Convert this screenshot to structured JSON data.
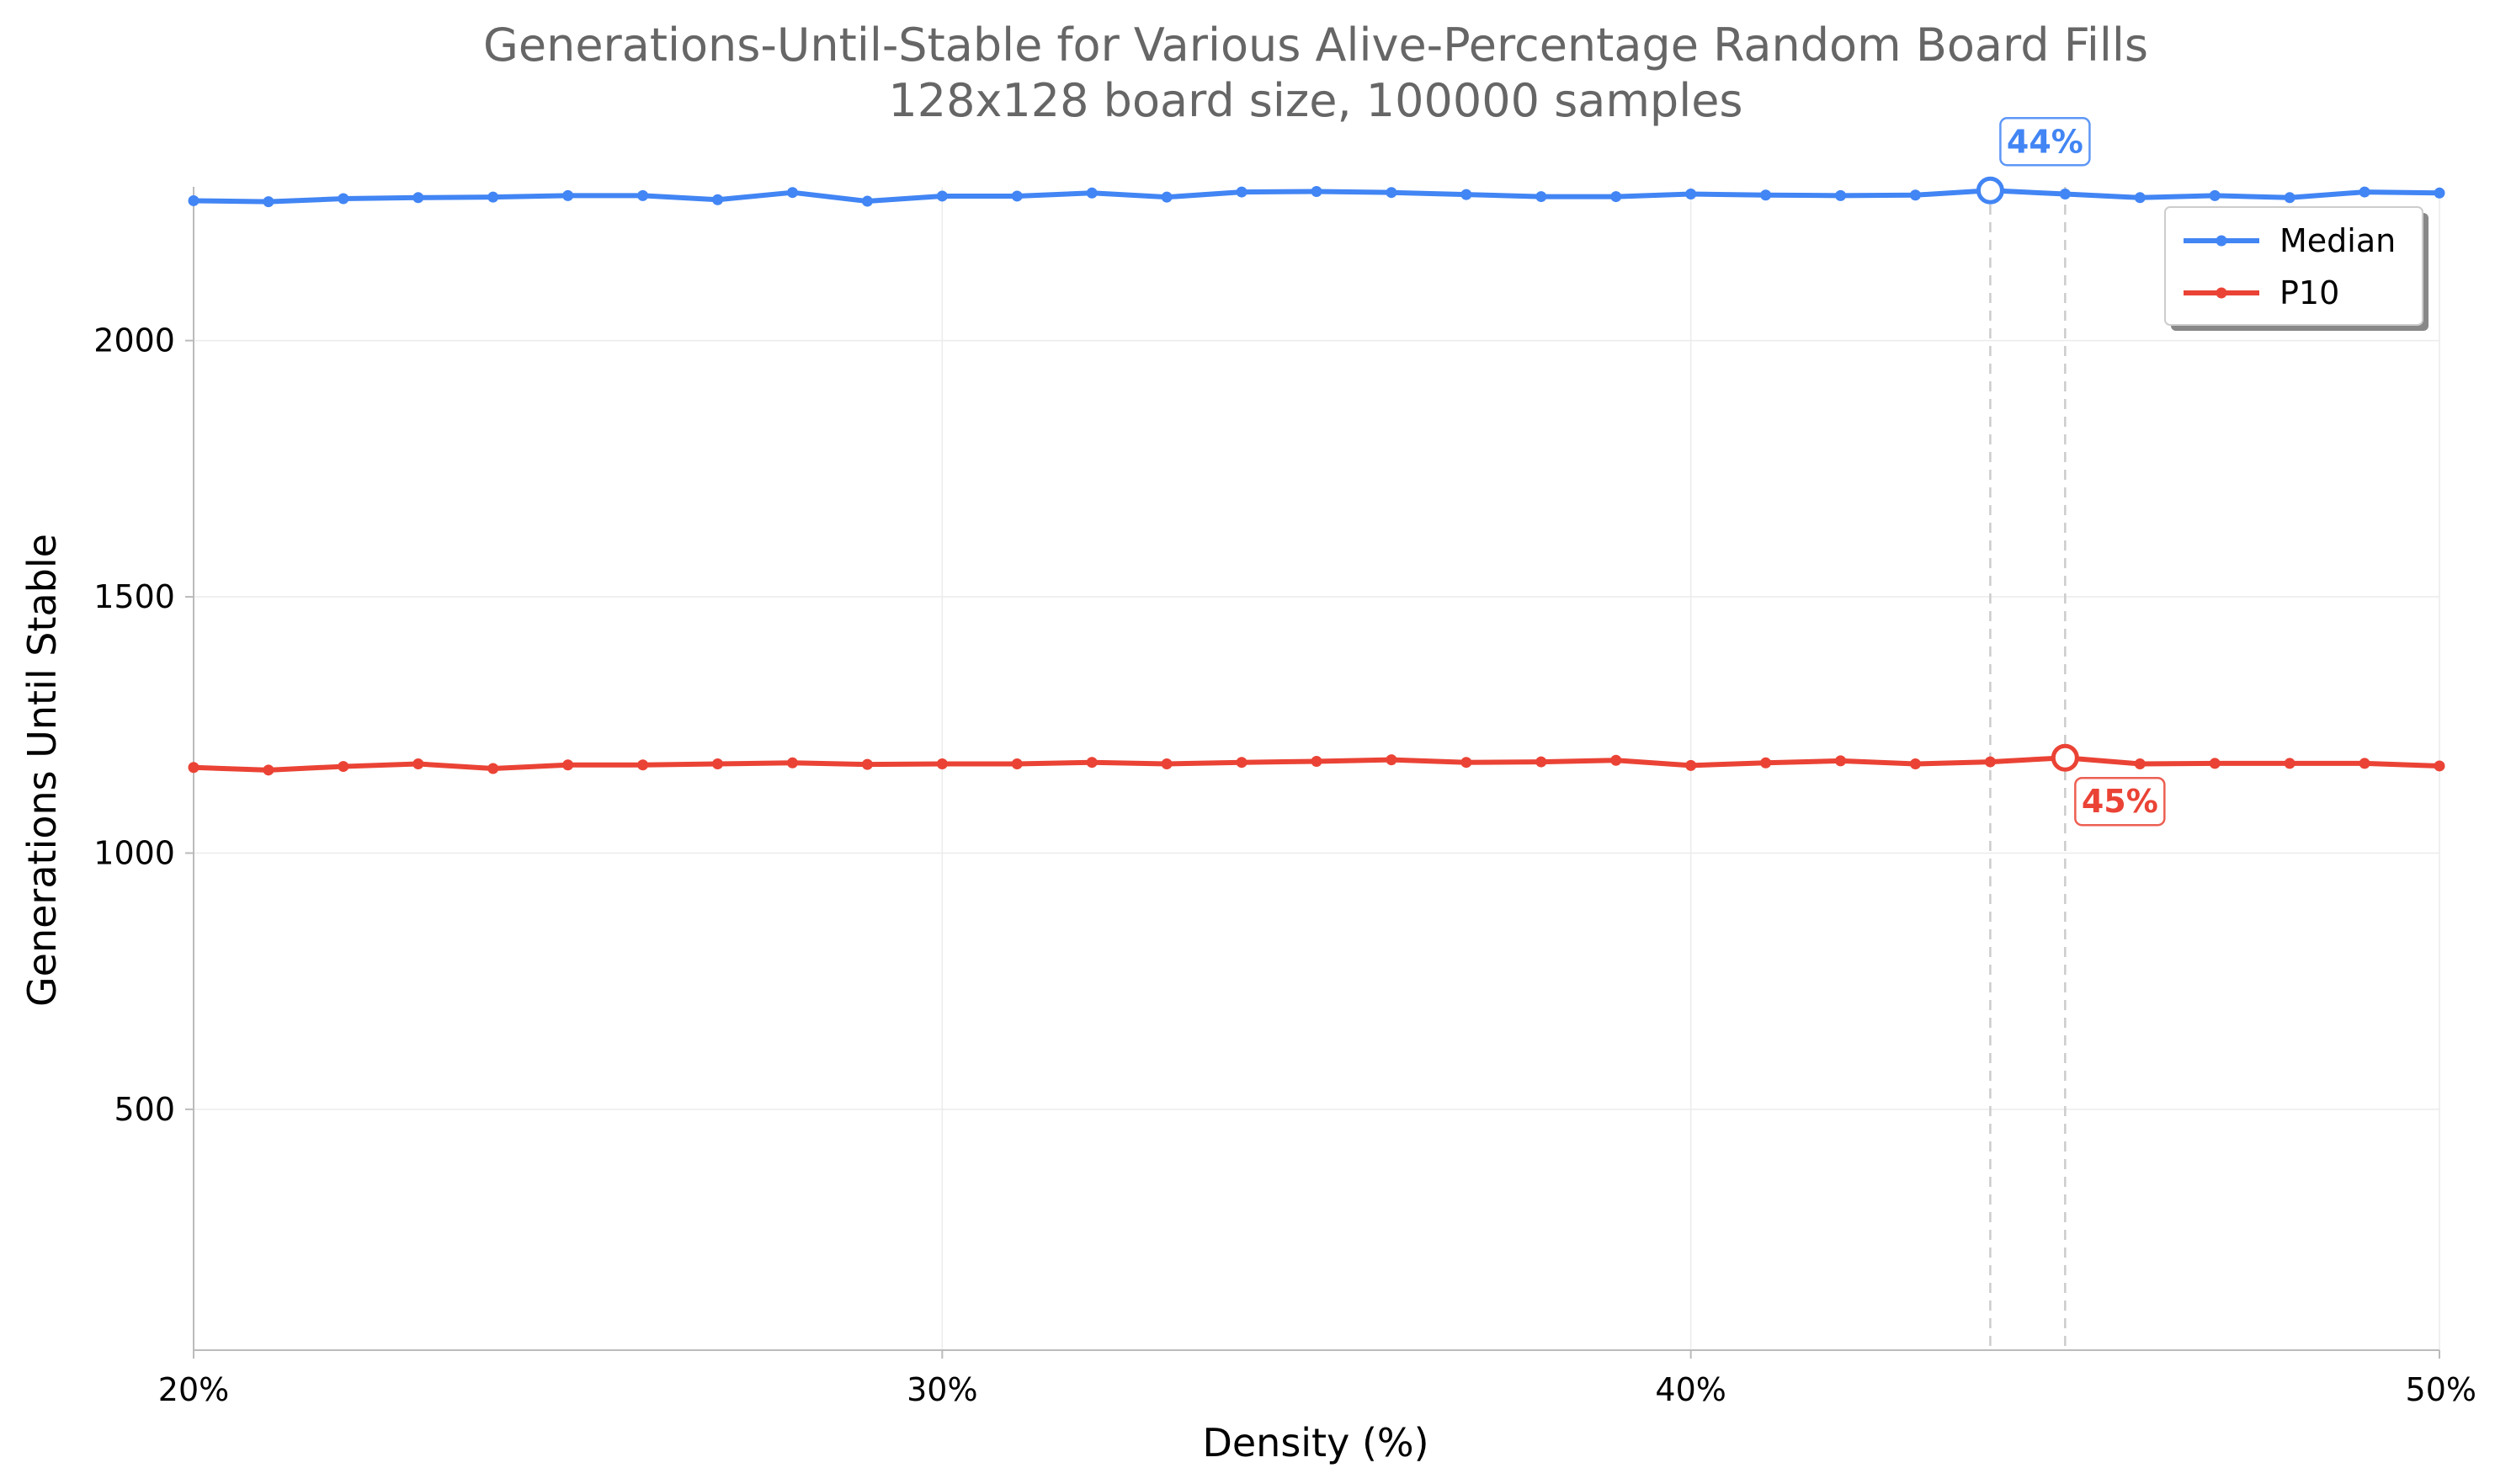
{
  "chart_data": {
    "type": "line",
    "title": "Generations-Until-Stable for Various Alive-Percentage Random Board Fills",
    "subtitle": "128x128 board size, 100000 samples",
    "xlabel": "Density (%)",
    "ylabel": "Generations Until Stable",
    "xlim": [
      20,
      50
    ],
    "ylim": [
      30,
      2300
    ],
    "x_ticks": [
      20,
      30,
      40,
      50
    ],
    "x_tick_labels": [
      "20%",
      "30%",
      "40%",
      "50%"
    ],
    "y_ticks": [
      500,
      1000,
      1500,
      2000
    ],
    "y_tick_labels": [
      "500",
      "1000",
      "1500",
      "2000"
    ],
    "grid": true,
    "legend_position": "top-right",
    "x": [
      20,
      21,
      22,
      23,
      24,
      25,
      26,
      27,
      28,
      29,
      30,
      31,
      32,
      33,
      34,
      35,
      36,
      37,
      38,
      39,
      40,
      41,
      42,
      43,
      44,
      45,
      46,
      47,
      48,
      49,
      50
    ],
    "series": [
      {
        "name": "Median",
        "color": "#4285f4",
        "values": [
          2273,
          2271,
          2277,
          2279,
          2280,
          2283,
          2283,
          2275,
          2289,
          2272,
          2282,
          2282,
          2288,
          2280,
          2290,
          2291,
          2289,
          2285,
          2281,
          2281,
          2286,
          2284,
          2283,
          2284,
          2293,
          2286,
          2279,
          2283,
          2279,
          2290,
          2288
        ]
      },
      {
        "name": "P10",
        "color": "#ea4335",
        "values": [
          1167,
          1162,
          1169,
          1174,
          1165,
          1172,
          1172,
          1174,
          1176,
          1173,
          1174,
          1174,
          1177,
          1174,
          1177,
          1179,
          1182,
          1177,
          1178,
          1181,
          1171,
          1176,
          1180,
          1174,
          1178,
          1186,
          1174,
          1175,
          1175,
          1175,
          1170
        ]
      }
    ],
    "annotations": [
      {
        "series": "Median",
        "x": 44,
        "y": 2293,
        "text": "44%"
      },
      {
        "series": "P10",
        "x": 45,
        "y": 1186,
        "text": "45%"
      }
    ]
  }
}
